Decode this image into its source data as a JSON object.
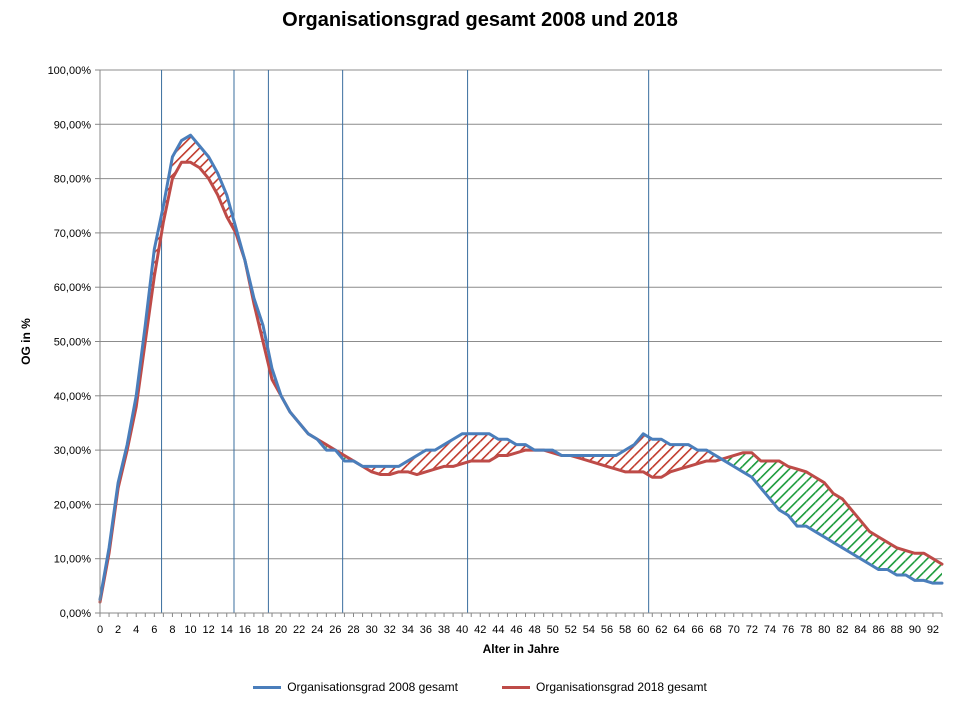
{
  "chart_data": {
    "type": "line",
    "title": "Organisationsgrad  gesamt 2008 und 2018",
    "xlabel": "Alter in Jahre",
    "ylabel": "OG in %",
    "xlim": [
      0,
      93
    ],
    "ylim": [
      0,
      100
    ],
    "x_ticks": [
      "0",
      "2",
      "4",
      "6",
      "8",
      "10",
      "12",
      "14",
      "16",
      "18",
      "20",
      "22",
      "24",
      "26",
      "28",
      "30",
      "32",
      "34",
      "36",
      "38",
      "40",
      "42",
      "44",
      "46",
      "48",
      "50",
      "52",
      "54",
      "56",
      "58",
      "60",
      "62",
      "64",
      "66",
      "68",
      "70",
      "72",
      "74",
      "76",
      "78",
      "80",
      "82",
      "84",
      "86",
      "88",
      "90",
      "92"
    ],
    "y_ticks": [
      "0,00%",
      "10,00%",
      "20,00%",
      "30,00%",
      "40,00%",
      "50,00%",
      "60,00%",
      "70,00%",
      "80,00%",
      "90,00%",
      "100,00%"
    ],
    "vertical_markers": [
      6.8,
      14.8,
      18.6,
      26.8,
      40.6,
      60.6
    ],
    "grid": true,
    "legend_position": "bottom",
    "fill_rule": "hatched area between series: red hatch where 2008 > 2018, green hatch where 2018 > 2008",
    "x": [
      0,
      1,
      2,
      3,
      4,
      5,
      6,
      7,
      8,
      9,
      10,
      11,
      12,
      13,
      14,
      15,
      16,
      17,
      18,
      19,
      20,
      21,
      22,
      23,
      24,
      25,
      26,
      27,
      28,
      29,
      30,
      31,
      32,
      33,
      34,
      35,
      36,
      37,
      38,
      39,
      40,
      41,
      42,
      43,
      44,
      45,
      46,
      47,
      48,
      49,
      50,
      51,
      52,
      53,
      54,
      55,
      56,
      57,
      58,
      59,
      60,
      61,
      62,
      63,
      64,
      65,
      66,
      67,
      68,
      69,
      70,
      71,
      72,
      73,
      74,
      75,
      76,
      77,
      78,
      79,
      80,
      81,
      82,
      83,
      84,
      85,
      86,
      87,
      88,
      89,
      90,
      91,
      92,
      93
    ],
    "series": [
      {
        "name": "Organisationsgrad 2008 gesamt",
        "color": "#4a7ebb",
        "values": [
          2.5,
          12,
          24,
          31,
          40,
          53,
          67,
          75,
          84,
          87,
          88,
          86,
          84,
          81,
          77,
          71,
          65,
          58,
          53,
          45,
          40,
          37,
          35,
          33,
          32,
          30,
          30,
          28,
          28,
          27,
          27,
          27,
          27,
          27,
          28,
          29,
          30,
          30,
          31,
          32,
          33,
          33,
          33,
          33,
          32,
          32,
          31,
          31,
          30,
          30,
          30,
          29,
          29,
          29,
          29,
          29,
          29,
          29,
          30,
          31,
          33,
          32,
          32,
          31,
          31,
          31,
          30,
          30,
          29,
          28,
          27,
          26,
          25,
          23,
          21,
          19,
          18,
          16,
          16,
          15,
          14,
          13,
          12,
          11,
          10,
          9,
          8,
          8,
          7,
          7,
          6,
          6,
          5.5,
          5.5
        ]
      },
      {
        "name": "Organisationsgrad 2018 gesamt",
        "color": "#be4b48",
        "values": [
          2,
          11,
          23,
          30,
          38,
          50,
          62,
          72,
          80,
          83,
          83,
          82,
          80,
          77,
          73,
          70,
          65,
          57,
          50,
          43,
          40,
          37,
          35,
          33,
          32,
          31,
          30,
          29,
          28,
          27,
          26,
          25.5,
          25.5,
          26,
          26,
          25.5,
          26,
          26.5,
          27,
          27,
          27.5,
          28,
          28,
          28,
          29,
          29,
          29.5,
          30,
          30,
          30,
          29.5,
          29,
          29,
          28.5,
          28,
          27.5,
          27,
          26.5,
          26,
          26,
          26,
          25,
          25,
          26,
          26.5,
          27,
          27.5,
          28,
          28,
          28.5,
          29,
          29.5,
          29.5,
          28,
          28,
          28,
          27,
          26.5,
          26,
          25,
          24,
          22,
          21,
          19,
          17,
          15,
          14,
          13,
          12,
          11.5,
          11,
          11,
          10,
          9
        ]
      }
    ]
  }
}
